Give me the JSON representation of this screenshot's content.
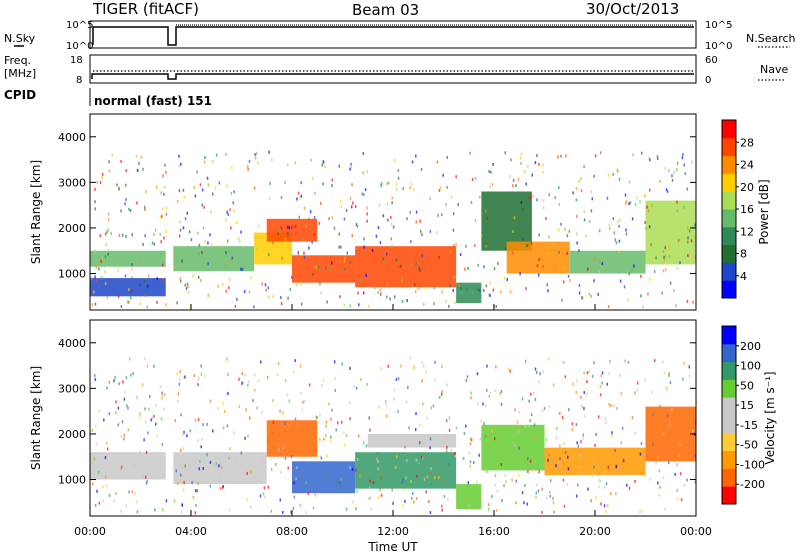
{
  "header": {
    "station": "TIGER (fitACF)",
    "beam": "Beam 03",
    "date": "30/Oct/2013"
  },
  "params": {
    "nsky_label": "N.Sky",
    "nsky_ticks": [
      "10^5",
      "10^0"
    ],
    "nsearch_label": "N.Search",
    "nsearch_ticks": [
      "10^5",
      "10^0"
    ],
    "freq_label_1": "Freq.",
    "freq_label_2": "[MHz]",
    "freq_ticks": [
      "18",
      "8"
    ],
    "nave_label": "Nave",
    "nave_ticks": [
      "60",
      "0"
    ],
    "cpid_label": "CPID",
    "cpid_value": "normal (fast) 151"
  },
  "colors": {
    "power_scale": [
      "#0000ff",
      "#1e46c8",
      "#1f6e32",
      "#2e8b57",
      "#66bb6a",
      "#aadd55",
      "#ffcc00",
      "#ff8c00",
      "#ff4500",
      "#ff0000"
    ],
    "velocity_scale": [
      "#ff0000",
      "#ff6600",
      "#ff9900",
      "#ffcc33",
      "#c8c8c8",
      "#c8c8c8",
      "#66cc33",
      "#339966",
      "#3366cc",
      "#0000ff"
    ]
  },
  "chart_data": [
    {
      "type": "heatmap",
      "panel": "power",
      "ylabel": "Slant Range [km]",
      "ylim": [
        200,
        4500
      ],
      "yticks": [
        1000,
        2000,
        3000,
        4000
      ],
      "xlim": [
        "00:00",
        "24:00"
      ],
      "xticks": [
        "00:00",
        "04:00",
        "08:00",
        "12:00",
        "16:00",
        "20:00",
        "00:00"
      ],
      "colorbar": {
        "label": "Power [dB]",
        "range": [
          0,
          32
        ],
        "ticks": [
          4,
          8,
          12,
          16,
          20,
          24,
          28
        ]
      },
      "bands": [
        {
          "t": [
            0.0,
            3.0
          ],
          "r": [
            1150,
            1500
          ],
          "value": 14
        },
        {
          "t": [
            0.0,
            3.0
          ],
          "r": [
            500,
            900
          ],
          "value": 5
        },
        {
          "t": [
            3.3,
            6.5
          ],
          "r": [
            1050,
            1600
          ],
          "value": 14
        },
        {
          "t": [
            6.5,
            8.0
          ],
          "r": [
            1200,
            1900
          ],
          "value": 22
        },
        {
          "t": [
            7.0,
            9.0
          ],
          "r": [
            1700,
            2200
          ],
          "value": 26
        },
        {
          "t": [
            8.0,
            10.5
          ],
          "r": [
            800,
            1400
          ],
          "value": 27
        },
        {
          "t": [
            10.5,
            14.5
          ],
          "r": [
            700,
            1600
          ],
          "value": 28
        },
        {
          "t": [
            14.5,
            15.5
          ],
          "r": [
            350,
            800
          ],
          "value": 10
        },
        {
          "t": [
            15.5,
            17.5
          ],
          "r": [
            1500,
            2800
          ],
          "value": 8
        },
        {
          "t": [
            16.5,
            19.0
          ],
          "r": [
            1000,
            1700
          ],
          "value": 24
        },
        {
          "t": [
            19.0,
            22.0
          ],
          "r": [
            1000,
            1500
          ],
          "value": 14
        },
        {
          "t": [
            22.0,
            24.0
          ],
          "r": [
            1200,
            2600
          ],
          "value": 18
        }
      ]
    },
    {
      "type": "heatmap",
      "panel": "velocity",
      "ylabel": "Slant Range [km]",
      "ylim": [
        200,
        4500
      ],
      "yticks": [
        1000,
        2000,
        3000,
        4000
      ],
      "xlim": [
        "00:00",
        "24:00"
      ],
      "xticks": [
        "00:00",
        "04:00",
        "08:00",
        "12:00",
        "16:00",
        "20:00",
        "00:00"
      ],
      "xlabel": "Time UT",
      "colorbar": {
        "label": "Velocity [m s⁻¹]",
        "range": [
          -250,
          250
        ],
        "ticks": [
          200,
          100,
          50,
          15,
          -15,
          -50,
          -100,
          -200
        ]
      },
      "bands": [
        {
          "t": [
            0.0,
            3.0
          ],
          "r": [
            1000,
            1600
          ],
          "value": 0
        },
        {
          "t": [
            3.3,
            7.0
          ],
          "r": [
            900,
            1600
          ],
          "value": 0
        },
        {
          "t": [
            7.0,
            9.0
          ],
          "r": [
            1500,
            2300
          ],
          "value": -200
        },
        {
          "t": [
            8.0,
            10.5
          ],
          "r": [
            700,
            1400
          ],
          "value": 150
        },
        {
          "t": [
            10.5,
            14.5
          ],
          "r": [
            800,
            1600
          ],
          "value": 120
        },
        {
          "t": [
            11.0,
            14.5
          ],
          "r": [
            1700,
            2000
          ],
          "value": 0
        },
        {
          "t": [
            14.5,
            15.5
          ],
          "r": [
            350,
            900
          ],
          "value": 60
        },
        {
          "t": [
            15.5,
            18.0
          ],
          "r": [
            1200,
            2200
          ],
          "value": 80
        },
        {
          "t": [
            18.0,
            22.0
          ],
          "r": [
            1100,
            1700
          ],
          "value": -120
        },
        {
          "t": [
            22.0,
            24.0
          ],
          "r": [
            1400,
            2600
          ],
          "value": -180
        }
      ]
    }
  ],
  "axis": {
    "xlabel": "Time UT"
  }
}
